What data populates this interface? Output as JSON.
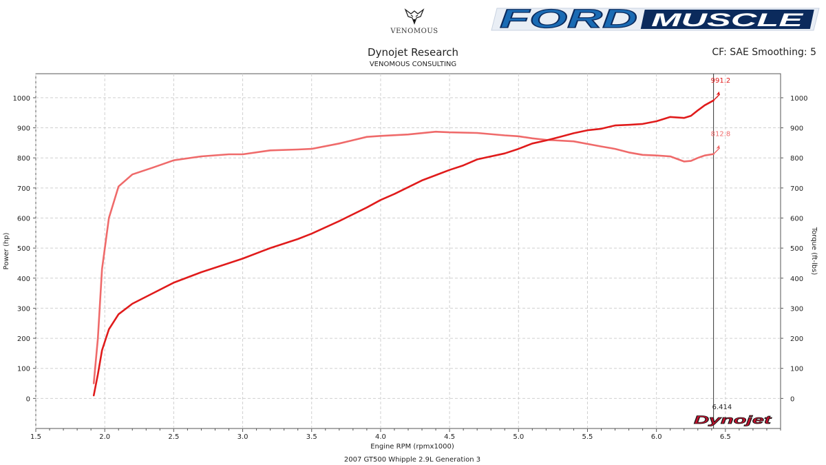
{
  "header": {
    "logo_text": "VENOMOUS",
    "brand_ford": "FORD",
    "brand_muscle": "MUSCLE",
    "title": "Dynojet Research",
    "subtitle": "VENOMOUS CONSULTING",
    "settings": "CF: SAE Smoothing: 5"
  },
  "colors": {
    "power": "#e01b1b",
    "torque": "#ef6a6a",
    "grid": "#cfcfcf",
    "frame": "#555555",
    "brand_blue": "#1a6bb4",
    "brand_navy": "#0b2a5c"
  },
  "chart_data": {
    "type": "line",
    "title": "2007 GT500 Whipple 2.9L Generation 3",
    "xlabel": "Engine RPM (rpmx1000)",
    "ylabel_left": "Power (hp)",
    "ylabel_right": "Torque (ft-lbs)",
    "xlim": [
      1.5,
      6.9
    ],
    "ylim": [
      -100,
      1080
    ],
    "x_ticks": [
      "1.5",
      "2.0",
      "2.5",
      "3.0",
      "3.5",
      "4.0",
      "4.5",
      "5.0",
      "5.5",
      "6.0",
      "6.5"
    ],
    "y_ticks_left": [
      "0",
      "100",
      "200",
      "300",
      "400",
      "500",
      "600",
      "700",
      "800",
      "900",
      "1000"
    ],
    "y_ticks_right": [
      "0",
      "100",
      "200",
      "300",
      "400",
      "500",
      "600",
      "700",
      "800",
      "900",
      "1000"
    ],
    "grid": true,
    "cursor": {
      "x": 6.414,
      "label": "6.414"
    },
    "series": [
      {
        "key": "power",
        "peak_label": "991.2",
        "points": [
          [
            1.92,
            10
          ],
          [
            1.95,
            80
          ],
          [
            1.98,
            160
          ],
          [
            2.03,
            230
          ],
          [
            2.1,
            280
          ],
          [
            2.2,
            315
          ],
          [
            2.35,
            350
          ],
          [
            2.5,
            385
          ],
          [
            2.7,
            420
          ],
          [
            2.9,
            450
          ],
          [
            3.0,
            465
          ],
          [
            3.2,
            500
          ],
          [
            3.4,
            530
          ],
          [
            3.5,
            548
          ],
          [
            3.7,
            590
          ],
          [
            3.9,
            635
          ],
          [
            4.0,
            660
          ],
          [
            4.1,
            680
          ],
          [
            4.3,
            725
          ],
          [
            4.5,
            760
          ],
          [
            4.6,
            775
          ],
          [
            4.7,
            795
          ],
          [
            4.9,
            815
          ],
          [
            5.0,
            830
          ],
          [
            5.1,
            848
          ],
          [
            5.2,
            858
          ],
          [
            5.3,
            870
          ],
          [
            5.4,
            882
          ],
          [
            5.5,
            892
          ],
          [
            5.6,
            897
          ],
          [
            5.7,
            908
          ],
          [
            5.8,
            910
          ],
          [
            5.9,
            913
          ],
          [
            6.0,
            922
          ],
          [
            6.1,
            936
          ],
          [
            6.2,
            933
          ],
          [
            6.25,
            940
          ],
          [
            6.3,
            958
          ],
          [
            6.35,
            975
          ],
          [
            6.414,
            991.2
          ]
        ]
      },
      {
        "key": "torque",
        "peak_label": "812.8",
        "points": [
          [
            1.92,
            50
          ],
          [
            1.95,
            200
          ],
          [
            1.98,
            430
          ],
          [
            2.03,
            600
          ],
          [
            2.1,
            705
          ],
          [
            2.2,
            745
          ],
          [
            2.35,
            768
          ],
          [
            2.5,
            792
          ],
          [
            2.7,
            805
          ],
          [
            2.9,
            812
          ],
          [
            3.0,
            812
          ],
          [
            3.2,
            825
          ],
          [
            3.4,
            828
          ],
          [
            3.5,
            830
          ],
          [
            3.7,
            848
          ],
          [
            3.9,
            870
          ],
          [
            4.0,
            873
          ],
          [
            4.2,
            878
          ],
          [
            4.4,
            887
          ],
          [
            4.5,
            885
          ],
          [
            4.7,
            883
          ],
          [
            4.9,
            875
          ],
          [
            5.0,
            872
          ],
          [
            5.1,
            865
          ],
          [
            5.2,
            860
          ],
          [
            5.4,
            855
          ],
          [
            5.6,
            838
          ],
          [
            5.7,
            830
          ],
          [
            5.8,
            818
          ],
          [
            5.9,
            810
          ],
          [
            6.0,
            808
          ],
          [
            6.1,
            805
          ],
          [
            6.2,
            788
          ],
          [
            6.25,
            790
          ],
          [
            6.3,
            800
          ],
          [
            6.35,
            808
          ],
          [
            6.414,
            812.8
          ]
        ]
      }
    ]
  },
  "watermark": "Dynojet"
}
